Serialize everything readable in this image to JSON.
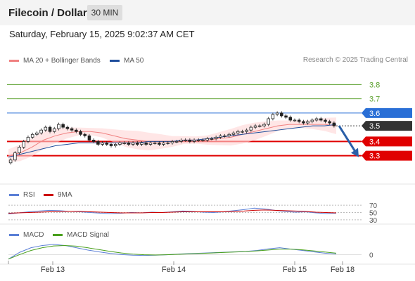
{
  "header": {
    "title": "Filecoin / Dollar",
    "timeframe": "30 MIN"
  },
  "datetime": "Saturday, February 15, 2025 9:02:37 AM CET",
  "legend": {
    "ma20": "MA 20 + Bollinger Bands",
    "ma50": "MA 50",
    "research": "Research © 2025 Trading Central"
  },
  "rsi_legend": {
    "rsi": "RSI",
    "ma": "9MA"
  },
  "macd_legend": {
    "macd": "MACD",
    "signal": "MACD Signal"
  },
  "colors": {
    "ma20": "#f08080",
    "ma50": "#1f4e9c",
    "rsi": "#5b7fd6",
    "rsi_ma": "#cc0000",
    "macd": "#5b7fd6",
    "macd_signal": "#4aa01e",
    "support": "#e00000",
    "resistance_green": "#5aa02c",
    "pivot_blue": "#2a6fd6",
    "current": "#333333"
  },
  "chart_data": [
    {
      "type": "candlestick",
      "x_ticks": [
        "Feb 13",
        "Feb 14",
        "Feb 15",
        "Feb 18"
      ],
      "ylim": [
        3.18,
        3.92
      ],
      "price_levels": [
        {
          "label": "3.8",
          "value": 3.8,
          "kind": "resistance"
        },
        {
          "label": "3.7",
          "value": 3.7,
          "kind": "resistance"
        },
        {
          "label": "3.6",
          "value": 3.6,
          "kind": "pivot"
        },
        {
          "label": "3.5",
          "value": 3.51,
          "kind": "current"
        },
        {
          "label": "3.4",
          "value": 3.4,
          "kind": "support"
        },
        {
          "label": "3.3",
          "value": 3.3,
          "kind": "support"
        }
      ],
      "close_series": [
        3.27,
        3.32,
        3.36,
        3.4,
        3.43,
        3.45,
        3.46,
        3.48,
        3.5,
        3.47,
        3.49,
        3.52,
        3.5,
        3.49,
        3.48,
        3.47,
        3.45,
        3.44,
        3.41,
        3.4,
        3.38,
        3.39,
        3.38,
        3.37,
        3.38,
        3.39,
        3.39,
        3.38,
        3.39,
        3.38,
        3.39,
        3.38,
        3.39,
        3.39,
        3.38,
        3.39,
        3.39,
        3.4,
        3.4,
        3.41,
        3.41,
        3.4,
        3.41,
        3.41,
        3.41,
        3.42,
        3.42,
        3.43,
        3.44,
        3.44,
        3.45,
        3.46,
        3.47,
        3.47,
        3.48,
        3.5,
        3.51,
        3.51,
        3.52,
        3.56,
        3.59,
        3.6,
        3.58,
        3.57,
        3.55,
        3.55,
        3.54,
        3.53,
        3.54,
        3.55,
        3.56,
        3.55,
        3.54,
        3.53,
        3.51
      ],
      "forecast": {
        "from": 3.51,
        "to": 3.3
      },
      "ma20": [
        3.3,
        3.32,
        3.36,
        3.41,
        3.44,
        3.46,
        3.47,
        3.47,
        3.46,
        3.44,
        3.42,
        3.41,
        3.4,
        3.4,
        3.4,
        3.41,
        3.41,
        3.41,
        3.42,
        3.43,
        3.45,
        3.47,
        3.49,
        3.51,
        3.52,
        3.52,
        3.52,
        3.52,
        3.51
      ],
      "ma50": [
        3.29,
        3.31,
        3.33,
        3.35,
        3.37,
        3.38,
        3.39,
        3.39,
        3.39,
        3.39,
        3.39,
        3.39,
        3.4,
        3.4,
        3.4,
        3.41,
        3.41,
        3.42,
        3.43,
        3.44,
        3.45,
        3.46,
        3.47,
        3.48,
        3.49,
        3.5,
        3.51,
        3.51,
        3.52
      ]
    },
    {
      "type": "line",
      "name_ref": "rsi",
      "y_ticks": [
        "70",
        "50",
        "30"
      ],
      "ylim": [
        20,
        80
      ],
      "rsi": [
        46,
        49,
        52,
        54,
        56,
        55,
        53,
        52,
        50,
        48,
        47,
        48,
        50,
        49,
        51,
        50,
        52,
        54,
        53,
        51,
        50,
        52,
        55,
        58,
        62,
        60,
        56,
        53,
        51,
        52,
        49,
        47,
        48
      ],
      "rsi_ma": [
        48,
        49,
        50,
        51,
        52,
        53,
        53,
        53,
        52,
        51,
        50,
        49,
        49,
        49,
        50,
        50,
        51,
        52,
        52,
        52,
        52,
        52,
        53,
        54,
        56,
        57,
        56,
        55,
        54,
        53,
        51,
        50,
        49
      ]
    },
    {
      "type": "line",
      "name_ref": "macd",
      "y_ticks": [
        "0"
      ],
      "ylim": [
        -0.03,
        0.06
      ],
      "macd": [
        -0.02,
        0.01,
        0.03,
        0.04,
        0.045,
        0.04,
        0.03,
        0.02,
        0.012,
        0.005,
        0.0,
        -0.003,
        -0.004,
        -0.003,
        -0.001,
        0.002,
        0.004,
        0.006,
        0.008,
        0.01,
        0.012,
        0.014,
        0.018,
        0.025,
        0.03,
        0.024,
        0.018,
        0.012,
        0.006,
        0.002
      ],
      "signal": [
        -0.02,
        0.0,
        0.018,
        0.03,
        0.038,
        0.04,
        0.037,
        0.03,
        0.022,
        0.014,
        0.007,
        0.002,
        -0.001,
        -0.002,
        -0.001,
        0.001,
        0.003,
        0.005,
        0.007,
        0.009,
        0.011,
        0.013,
        0.016,
        0.02,
        0.024,
        0.024,
        0.021,
        0.016,
        0.011,
        0.006
      ]
    }
  ]
}
